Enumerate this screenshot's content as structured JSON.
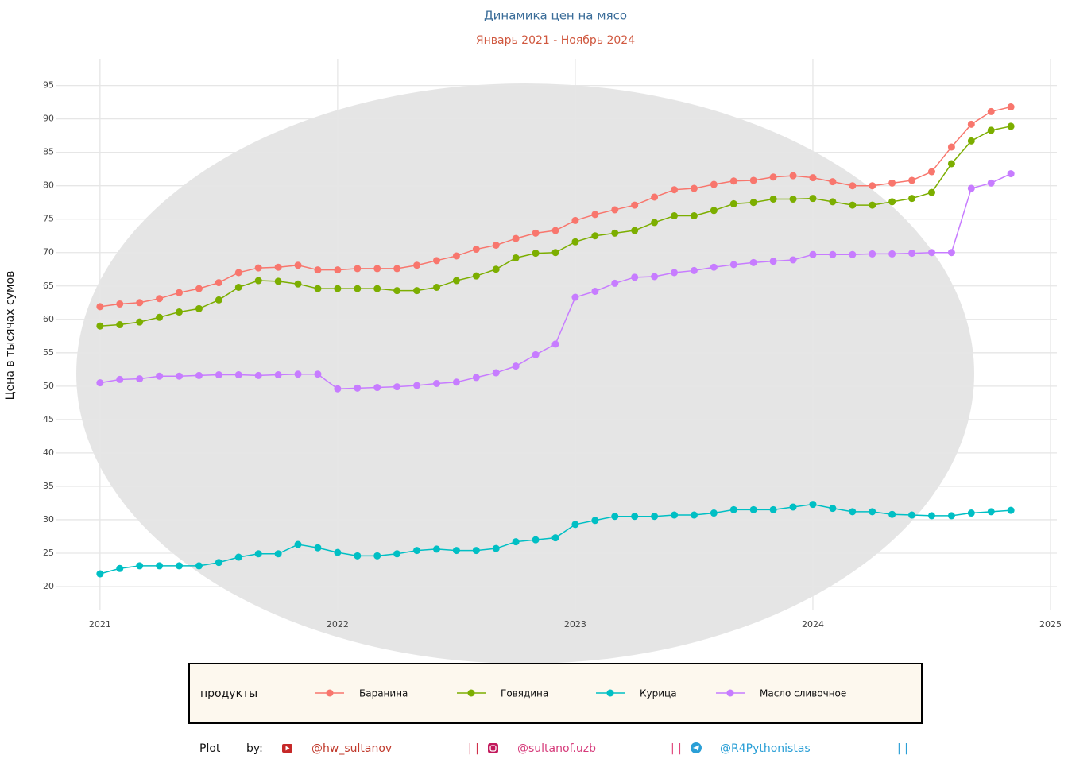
{
  "chart_data": {
    "type": "line",
    "title": "Динамика цен на мясо",
    "subtitle": "Январь 2021 - Ноябрь 2024",
    "y_label": "Цена в тысячах сумов",
    "legend_title": "продукты",
    "legend_position": "bottom",
    "grid": true,
    "x": [
      "2021-01",
      "2021-02",
      "2021-03",
      "2021-04",
      "2021-05",
      "2021-06",
      "2021-07",
      "2021-08",
      "2021-09",
      "2021-10",
      "2021-11",
      "2021-12",
      "2022-01",
      "2022-02",
      "2022-03",
      "2022-04",
      "2022-05",
      "2022-06",
      "2022-07",
      "2022-08",
      "2022-09",
      "2022-10",
      "2022-11",
      "2022-12",
      "2023-01",
      "2023-02",
      "2023-03",
      "2023-04",
      "2023-05",
      "2023-06",
      "2023-07",
      "2023-08",
      "2023-09",
      "2023-10",
      "2023-11",
      "2023-12",
      "2024-01",
      "2024-02",
      "2024-03",
      "2024-04",
      "2024-05",
      "2024-06",
      "2024-07",
      "2024-08",
      "2024-09",
      "2024-10",
      "2024-11"
    ],
    "xlim": [
      "2020-11",
      "2025-01"
    ],
    "xticks": [
      "2021",
      "2022",
      "2023",
      "2024",
      "2025"
    ],
    "ylim": [
      17.5,
      99
    ],
    "yticks": [
      20,
      25,
      30,
      35,
      40,
      45,
      50,
      55,
      60,
      65,
      70,
      75,
      80,
      85,
      90,
      95
    ],
    "series": [
      {
        "name": "Баранина",
        "color": "#F8766D",
        "values": [
          61.9,
          62.3,
          62.5,
          63.1,
          64.0,
          64.6,
          65.5,
          67.0,
          67.7,
          67.8,
          68.1,
          67.4,
          67.4,
          67.6,
          67.6,
          67.6,
          68.1,
          68.8,
          69.5,
          70.5,
          71.1,
          72.1,
          72.9,
          73.3,
          74.8,
          75.7,
          76.4,
          77.1,
          78.3,
          79.4,
          79.6,
          80.2,
          80.7,
          80.8,
          81.3,
          81.5,
          81.2,
          80.6,
          80.0,
          80.0,
          80.4,
          80.8,
          82.1,
          85.8,
          89.2,
          91.1,
          91.8
        ]
      },
      {
        "name": "Говядина",
        "color": "#7CAE00",
        "values": [
          59.0,
          59.2,
          59.6,
          60.3,
          61.1,
          61.6,
          62.9,
          64.8,
          65.8,
          65.7,
          65.3,
          64.6,
          64.6,
          64.6,
          64.6,
          64.3,
          64.3,
          64.8,
          65.8,
          66.5,
          67.5,
          69.2,
          69.9,
          70.0,
          71.6,
          72.5,
          72.9,
          73.3,
          74.5,
          75.5,
          75.5,
          76.3,
          77.3,
          77.5,
          78.0,
          78.0,
          78.1,
          77.6,
          77.1,
          77.1,
          77.6,
          78.1,
          79.0,
          83.3,
          86.7,
          88.3,
          88.9
        ]
      },
      {
        "name": "Курица",
        "color": "#00BFC4",
        "values": [
          21.9,
          22.7,
          23.1,
          23.1,
          23.1,
          23.1,
          23.6,
          24.4,
          24.9,
          24.9,
          26.3,
          25.8,
          25.1,
          24.6,
          24.6,
          24.9,
          25.4,
          25.6,
          25.4,
          25.4,
          25.7,
          26.7,
          27.0,
          27.3,
          29.3,
          29.9,
          30.5,
          30.5,
          30.5,
          30.7,
          30.7,
          31.0,
          31.5,
          31.5,
          31.5,
          31.9,
          32.3,
          31.7,
          31.2,
          31.2,
          30.8,
          30.7,
          30.6,
          30.6,
          31.0,
          31.2,
          31.4
        ]
      },
      {
        "name": "Масло сливочное",
        "color": "#C77CFF",
        "values": [
          50.5,
          51.0,
          51.1,
          51.5,
          51.5,
          51.6,
          51.7,
          51.7,
          51.6,
          51.7,
          51.8,
          51.8,
          49.6,
          49.7,
          49.8,
          49.9,
          50.1,
          50.4,
          50.6,
          51.3,
          52.0,
          53.0,
          54.7,
          56.3,
          63.3,
          64.2,
          65.4,
          66.3,
          66.4,
          67.0,
          67.3,
          67.8,
          68.2,
          68.5,
          68.7,
          68.9,
          69.7,
          69.7,
          69.7,
          69.8,
          69.8,
          69.9,
          70.0,
          70.0,
          79.6,
          80.4,
          81.8
        ]
      }
    ]
  },
  "footer": {
    "plot": "Plot",
    "by": "by:",
    "youtube": "@hw_sultanov",
    "instagram": "@sultanof.uzb",
    "telegram": "@R4Pythonistas",
    "separator": "| |"
  }
}
